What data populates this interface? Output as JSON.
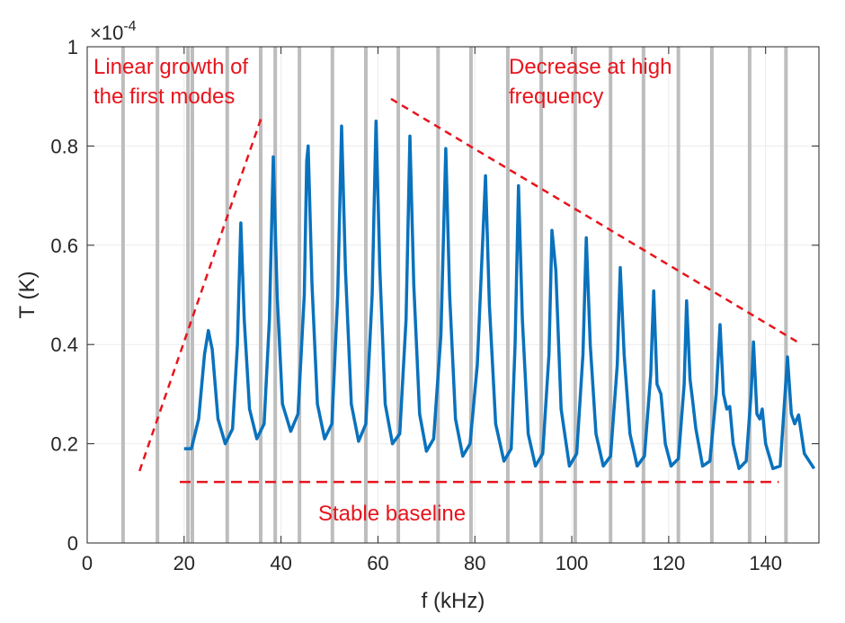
{
  "chart_data": {
    "type": "line",
    "xlabel": "f (kHz)",
    "ylabel": "T (K)",
    "y_exponent_base": "×10",
    "y_exponent": "-4",
    "xlim": [
      0,
      151
    ],
    "ylim": [
      0,
      1
    ],
    "xticks": [
      0,
      20,
      40,
      60,
      80,
      100,
      120,
      140
    ],
    "yticks": [
      0,
      0.2,
      0.4,
      0.6,
      0.8,
      1
    ],
    "grid": true,
    "mode_lines": {
      "color": "#bdbdbd",
      "x": [
        7.4,
        14.5,
        20.8,
        21.7,
        28.9,
        35.8,
        38.8,
        43.8,
        50.6,
        57.5,
        64.2,
        72.4,
        79.2,
        86.8,
        93.7,
        100.7,
        108,
        114.8,
        122,
        128.9,
        136.7,
        144.2
      ]
    },
    "series": [
      {
        "color": "#0a72bd",
        "x": [
          20,
          21.5,
          23,
          24.2,
          25,
          25.8,
          27,
          28.5,
          30,
          31,
          31.7,
          32.4,
          33.5,
          35,
          36.5,
          37.6,
          38.4,
          39.2,
          40.3,
          42,
          43.5,
          44.8,
          45.3,
          45.6,
          46.4,
          47.5,
          49,
          50.5,
          51.7,
          52.5,
          53.3,
          54.5,
          56,
          57.5,
          58.8,
          59.6,
          60.4,
          61.5,
          63,
          64.5,
          65.8,
          66.6,
          67.4,
          68.6,
          70,
          71.5,
          73,
          74,
          74.8,
          76,
          77.5,
          79,
          80.5,
          82.2,
          83,
          84.3,
          86,
          87.5,
          88.3,
          89,
          89.8,
          91,
          92.5,
          94,
          95.3,
          95.9,
          96.7,
          97.8,
          99.5,
          101,
          102.3,
          103,
          103.8,
          105,
          106.5,
          108,
          109.4,
          110,
          110.8,
          112,
          113.5,
          115,
          116.3,
          116.9,
          117.6,
          118.4,
          119.3,
          120.5,
          122,
          123.2,
          123.7,
          124.4,
          124.9,
          125.6,
          127,
          128.5,
          129.8,
          130.6,
          131.3,
          132,
          132.6,
          133.3,
          134.5,
          136,
          137,
          137.5,
          138.2,
          138.8,
          139.3,
          140,
          141.5,
          143,
          144,
          144.5,
          145.3,
          146,
          146.8,
          148,
          150
        ],
        "values": [
          0.19,
          0.19,
          0.25,
          0.38,
          0.428,
          0.39,
          0.25,
          0.2,
          0.23,
          0.4,
          0.645,
          0.45,
          0.27,
          0.21,
          0.24,
          0.45,
          0.778,
          0.5,
          0.28,
          0.225,
          0.26,
          0.5,
          0.77,
          0.8,
          0.52,
          0.28,
          0.21,
          0.24,
          0.5,
          0.84,
          0.55,
          0.28,
          0.205,
          0.24,
          0.5,
          0.85,
          0.55,
          0.28,
          0.2,
          0.22,
          0.45,
          0.82,
          0.52,
          0.26,
          0.185,
          0.21,
          0.42,
          0.795,
          0.5,
          0.25,
          0.175,
          0.2,
          0.36,
          0.74,
          0.48,
          0.24,
          0.165,
          0.19,
          0.4,
          0.72,
          0.45,
          0.22,
          0.155,
          0.18,
          0.38,
          0.63,
          0.55,
          0.27,
          0.155,
          0.18,
          0.38,
          0.615,
          0.4,
          0.22,
          0.155,
          0.175,
          0.36,
          0.555,
          0.38,
          0.22,
          0.155,
          0.175,
          0.34,
          0.508,
          0.32,
          0.3,
          0.2,
          0.155,
          0.17,
          0.32,
          0.488,
          0.33,
          0.29,
          0.23,
          0.155,
          0.165,
          0.3,
          0.44,
          0.3,
          0.27,
          0.275,
          0.2,
          0.15,
          0.165,
          0.3,
          0.405,
          0.26,
          0.25,
          0.27,
          0.2,
          0.15,
          0.155,
          0.3,
          0.375,
          0.26,
          0.24,
          0.258,
          0.18,
          0.15
        ]
      }
    ],
    "annotations": [
      {
        "lines": [
          "Linear growth of",
          "the first modes"
        ],
        "color": "#e8141c",
        "x": [
          10.8,
          36
        ],
        "y": [
          0.145,
          0.859
        ]
      },
      {
        "lines": [
          "Decrease at high",
          "frequency"
        ],
        "color": "#e8141c",
        "x": [
          62.7,
          147.1
        ],
        "y": [
          0.895,
          0.402
        ]
      },
      {
        "lines": [
          "Stable baseline"
        ],
        "color": "#e8141c",
        "x": [
          19.1,
          142.7
        ],
        "y": [
          0.123,
          0.123
        ]
      }
    ]
  }
}
